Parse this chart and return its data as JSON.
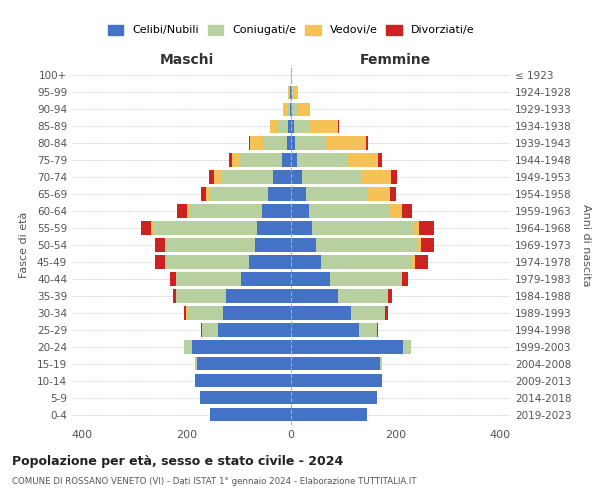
{
  "age_groups": [
    "0-4",
    "5-9",
    "10-14",
    "15-19",
    "20-24",
    "25-29",
    "30-34",
    "35-39",
    "40-44",
    "45-49",
    "50-54",
    "55-59",
    "60-64",
    "65-69",
    "70-74",
    "75-79",
    "80-84",
    "85-89",
    "90-94",
    "95-99",
    "100+"
  ],
  "birth_years": [
    "2019-2023",
    "2014-2018",
    "2009-2013",
    "2004-2008",
    "1999-2003",
    "1994-1998",
    "1989-1993",
    "1984-1988",
    "1979-1983",
    "1974-1978",
    "1969-1973",
    "1964-1968",
    "1959-1963",
    "1954-1958",
    "1949-1953",
    "1944-1948",
    "1939-1943",
    "1934-1938",
    "1929-1933",
    "1924-1928",
    "≤ 1923"
  ],
  "colors": {
    "celibi": "#4472c4",
    "coniugati": "#b8cfa0",
    "vedovi": "#f4c256",
    "divorziati": "#cc2222"
  },
  "maschi": {
    "celibi": [
      155,
      175,
      185,
      180,
      190,
      140,
      130,
      125,
      95,
      80,
      70,
      65,
      55,
      45,
      35,
      18,
      8,
      5,
      2,
      1,
      0
    ],
    "coniugati": [
      0,
      0,
      0,
      5,
      15,
      30,
      70,
      95,
      125,
      160,
      170,
      200,
      140,
      110,
      100,
      80,
      45,
      20,
      5,
      2,
      0
    ],
    "vedovi": [
      0,
      0,
      0,
      0,
      0,
      1,
      1,
      1,
      1,
      2,
      2,
      3,
      5,
      8,
      12,
      15,
      25,
      15,
      8,
      3,
      0
    ],
    "divorziati": [
      0,
      0,
      0,
      0,
      1,
      2,
      5,
      5,
      12,
      18,
      18,
      20,
      18,
      10,
      10,
      5,
      2,
      1,
      0,
      0,
      0
    ]
  },
  "femmine": {
    "celibi": [
      145,
      165,
      175,
      170,
      215,
      130,
      115,
      90,
      75,
      58,
      48,
      40,
      35,
      28,
      22,
      12,
      8,
      5,
      2,
      1,
      0
    ],
    "coniugati": [
      0,
      0,
      0,
      5,
      15,
      35,
      65,
      95,
      135,
      175,
      195,
      195,
      155,
      120,
      115,
      95,
      60,
      30,
      10,
      4,
      0
    ],
    "vedovi": [
      0,
      0,
      0,
      0,
      0,
      0,
      1,
      1,
      2,
      4,
      6,
      10,
      22,
      42,
      55,
      60,
      75,
      55,
      25,
      8,
      2
    ],
    "divorziati": [
      0,
      0,
      0,
      0,
      1,
      2,
      5,
      8,
      12,
      25,
      25,
      30,
      20,
      12,
      12,
      8,
      5,
      2,
      0,
      0,
      0
    ]
  },
  "xlim": 420,
  "title": "Popolazione per età, sesso e stato civile - 2024",
  "subtitle": "COMUNE DI ROSSANO VENETO (VI) - Dati ISTAT 1° gennaio 2024 - Elaborazione TUTTITALIA.IT",
  "ylabel_left": "Fasce di età",
  "ylabel_right": "Anni di nascita",
  "label_maschi": "Maschi",
  "label_femmine": "Femmine",
  "legend_labels": [
    "Celibi/Nubili",
    "Coniugati/e",
    "Vedovi/e",
    "Divorziati/e"
  ],
  "bg_color": "#ffffff",
  "grid_color": "#cccccc"
}
